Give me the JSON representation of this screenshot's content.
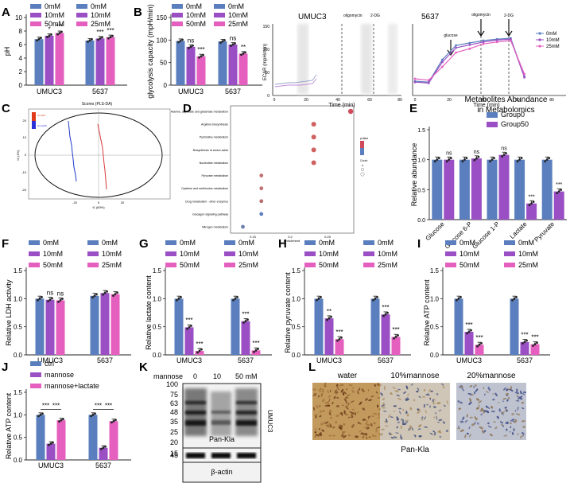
{
  "colors": {
    "blue": "#5b7fbe",
    "purple": "#9a4fc4",
    "pink": "#e55fbf",
    "dark": "#222222"
  },
  "panel_letters": [
    "A",
    "B",
    "C",
    "D",
    "E",
    "F",
    "G",
    "H",
    "I",
    "J",
    "K",
    "L"
  ],
  "common": {
    "doses": [
      "0mM",
      "10mM",
      "50mM"
    ],
    "doses_5637": [
      "0mM",
      "10mM",
      "25mM"
    ],
    "cell_lines": [
      "UMUC3",
      "5637"
    ]
  },
  "chart_data": [
    {
      "panel": "A",
      "type": "bar",
      "ylabel": "pH",
      "ylim": [
        0,
        10
      ],
      "yticks": [
        0,
        2,
        4,
        6,
        8,
        10
      ],
      "categories": [
        "UMUC3",
        "5637"
      ],
      "series": [
        {
          "name": "0mM",
          "values": [
            6.8,
            6.6
          ]
        },
        {
          "name": "10mM",
          "values": [
            7.3,
            6.9
          ]
        },
        {
          "name": "50mM",
          "values": [
            7.7,
            7.1
          ]
        }
      ],
      "sig": [
        "",
        "*",
        "***",
        "",
        "***",
        "***"
      ]
    },
    {
      "panel": "B",
      "type": "bar",
      "ylabel": "glycolysis capacity (mpH/min)",
      "ylim": [
        0,
        150
      ],
      "yticks": [
        0,
        50,
        100,
        150
      ],
      "categories": [
        "UMUC3",
        "5637"
      ],
      "series": [
        {
          "name": "0mM",
          "values": [
            98,
            97
          ]
        },
        {
          "name": "10mM",
          "values": [
            85,
            90
          ]
        },
        {
          "name": "50mM",
          "values": [
            64,
            70
          ]
        }
      ],
      "sig": [
        "",
        "ns",
        "***",
        "",
        "ns",
        "**"
      ]
    },
    {
      "panel": "B-ecar-UMUC3",
      "type": "line",
      "title": "UMUC3",
      "xlabel": "Time (min)",
      "ylabel": "ECAR (mpH/min)",
      "markers": [
        "oligomycin",
        "2-DG"
      ]
    },
    {
      "panel": "B-ecar-5637",
      "type": "line",
      "title": "5637",
      "xlabel": "Time (min)",
      "markers": [
        "glucose",
        "oligomycin",
        "2-DG"
      ],
      "legend": [
        "0mM",
        "10mM",
        "25mM"
      ],
      "x": [
        0,
        8,
        16,
        24,
        32,
        40,
        48,
        56,
        64
      ],
      "series": [
        {
          "name": "0mM",
          "values": [
            30,
            28,
            75,
            105,
            110,
            115,
            118,
            120,
            40
          ]
        },
        {
          "name": "10mM",
          "values": [
            28,
            26,
            70,
            100,
            106,
            112,
            116,
            118,
            38
          ]
        },
        {
          "name": "25mM",
          "values": [
            35,
            32,
            60,
            90,
            98,
            108,
            112,
            115,
            45
          ]
        }
      ]
    },
    {
      "panel": "C",
      "type": "scatter",
      "title": "Scores (PLS-DA)",
      "xlabel": "t1 (60%)",
      "ylabel": "t2 (1%)",
      "legend": [
        "Group0",
        "Group50"
      ]
    },
    {
      "panel": "D",
      "type": "scatter",
      "xlabel": "Enrichment",
      "categories": [
        "Alanine, aspartate and glutamate metabolism",
        "Arginine biosynthesis",
        "Pyrimidine metabolism",
        "Biosynthesis of amino acids",
        "Nucleotide metabolism",
        "Pyruvate metabolism",
        "Cysteine and methionine metabolism",
        "Drug metabolism - other enzymes",
        "Glucagon signaling pathway",
        "Nitrogen metabolism"
      ],
      "values": [
        0.295,
        0.235,
        0.235,
        0.235,
        0.235,
        0.15,
        0.15,
        0.15,
        0.15,
        0.12
      ],
      "legend_titles": [
        "pvalue",
        "Count"
      ]
    },
    {
      "panel": "E",
      "type": "bar",
      "title": "Metabolites Abundance in Metabolomics",
      "ylabel": "Relative abundance",
      "ylim": [
        0,
        1.5
      ],
      "yticks": [
        0.0,
        0.5,
        1.0,
        1.5
      ],
      "categories": [
        "Glucose",
        "Glucose 6-P",
        "Glucose 1-P",
        "Lactate",
        "Pyruvate"
      ],
      "series": [
        {
          "name": "Group0",
          "values": [
            1.0,
            1.0,
            1.0,
            1.0,
            1.0
          ]
        },
        {
          "name": "Group50",
          "values": [
            1.0,
            1.02,
            1.08,
            0.27,
            0.47
          ]
        }
      ],
      "sig": [
        "ns",
        "ns",
        "ns",
        "***",
        "***"
      ]
    },
    {
      "panel": "F",
      "type": "bar",
      "ylabel": "Relative LDH activity",
      "ylim": [
        0,
        1.5
      ],
      "yticks": [
        0.0,
        0.5,
        1.0,
        1.5
      ],
      "categories": [
        "UMUC3",
        "5637"
      ],
      "series": [
        {
          "name": "0mM",
          "values": [
            1.0,
            1.05
          ]
        },
        {
          "name": "10mM",
          "values": [
            0.98,
            1.1
          ]
        },
        {
          "name": "50mM",
          "values": [
            0.97,
            1.08
          ]
        }
      ],
      "sig": [
        "",
        "ns",
        "ns",
        "",
        "",
        ""
      ]
    },
    {
      "panel": "G",
      "type": "bar",
      "ylabel": "Relative lactate content",
      "ylim": [
        0,
        1.5
      ],
      "yticks": [
        0.0,
        0.5,
        1.0,
        1.5
      ],
      "categories": [
        "UMUC3",
        "5637"
      ],
      "series": [
        {
          "name": "0mM",
          "values": [
            1.0,
            1.0
          ]
        },
        {
          "name": "10mM",
          "values": [
            0.49,
            0.6
          ]
        },
        {
          "name": "50mM",
          "values": [
            0.07,
            0.08
          ]
        }
      ],
      "sig": [
        "",
        "***",
        "***",
        "",
        "***",
        "***"
      ]
    },
    {
      "panel": "H",
      "type": "bar",
      "ylabel": "Relative pyruvate content",
      "ylim": [
        0,
        1.5
      ],
      "yticks": [
        0.0,
        0.5,
        1.0,
        1.5
      ],
      "categories": [
        "UMUC3",
        "5637"
      ],
      "series": [
        {
          "name": "0mM",
          "values": [
            1.0,
            1.0
          ]
        },
        {
          "name": "10mM",
          "values": [
            0.65,
            0.72
          ]
        },
        {
          "name": "50mM",
          "values": [
            0.28,
            0.32
          ]
        }
      ],
      "sig": [
        "",
        "**",
        "***",
        "",
        "***",
        "***"
      ]
    },
    {
      "panel": "I",
      "type": "bar",
      "ylabel": "Relative ATP content",
      "ylim": [
        0,
        1.5
      ],
      "yticks": [
        0.0,
        0.5,
        1.0,
        1.5
      ],
      "categories": [
        "UMUC3",
        "5637"
      ],
      "series": [
        {
          "name": "0mM",
          "values": [
            1.0,
            1.0
          ]
        },
        {
          "name": "10mM",
          "values": [
            0.41,
            0.23
          ]
        },
        {
          "name": "50mM",
          "values": [
            0.18,
            0.19
          ]
        }
      ],
      "sig": [
        "",
        "***",
        "***",
        "",
        "***",
        "***"
      ]
    },
    {
      "panel": "J",
      "type": "bar",
      "ylabel": "Relative ATP content",
      "ylim": [
        0,
        1.5
      ],
      "yticks": [
        0.0,
        0.5,
        1.0,
        1.5
      ],
      "categories": [
        "UMUC3",
        "5637"
      ],
      "series": [
        {
          "name": "ctrl",
          "values": [
            1.0,
            1.0
          ]
        },
        {
          "name": "mannose",
          "values": [
            0.36,
            0.27
          ]
        },
        {
          "name": "mannose+lactate",
          "values": [
            0.88,
            0.86
          ]
        }
      ],
      "sig": [
        "***",
        "***",
        "***",
        "***"
      ]
    }
  ],
  "ticks": {
    "ecar_x_umuc3": [
      "0",
      "20",
      "40",
      "60",
      "80"
    ],
    "ecar_x_5637": [
      "0",
      "20",
      "40",
      "60",
      "80"
    ],
    "ecar_y": [
      "0",
      "50",
      "100",
      "150"
    ],
    "c_x": [
      "-20",
      "0",
      "20"
    ],
    "c_y": [
      "20",
      "10",
      "0",
      "-10",
      "-20"
    ],
    "d_x": [
      "0.15",
      "0.2",
      "0.25"
    ]
  },
  "western": {
    "header_label": "mannose",
    "lanes": [
      "0",
      "10",
      "50 mM"
    ],
    "markers": [
      "100",
      "75",
      "63",
      "48",
      "35",
      "25",
      "20",
      "15"
    ],
    "actin_marker": "45",
    "side_label": "UMUC3",
    "blot_label": "Pan-Kla",
    "loading_label": "β-actin"
  },
  "ihc": {
    "panels": [
      "water",
      "10%mannose",
      "20%mannose"
    ],
    "label": "Pan-Kla"
  }
}
